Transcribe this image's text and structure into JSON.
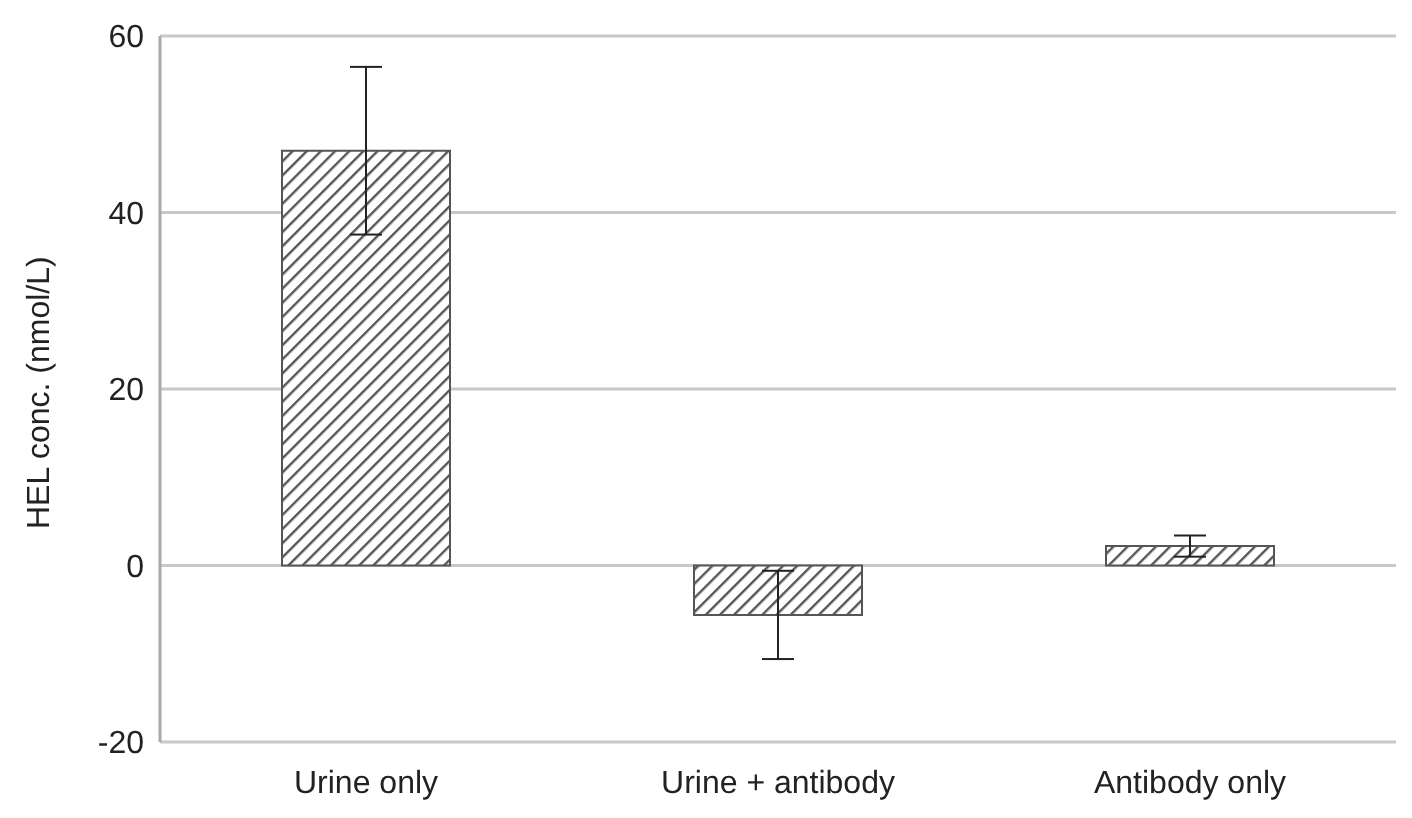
{
  "chart_data": {
    "type": "bar",
    "ylabel": "HEL conc. (nmol/L)",
    "categories": [
      "Urine only",
      "Urine + antibody",
      "Antibody only"
    ],
    "values": [
      47,
      -5.6,
      2.2
    ],
    "errors": [
      9.5,
      5,
      1.2
    ],
    "color": "#555555",
    "ylim": [
      -20,
      60
    ],
    "yticks": [
      -20,
      0,
      20,
      40,
      60
    ],
    "grid": "y"
  }
}
